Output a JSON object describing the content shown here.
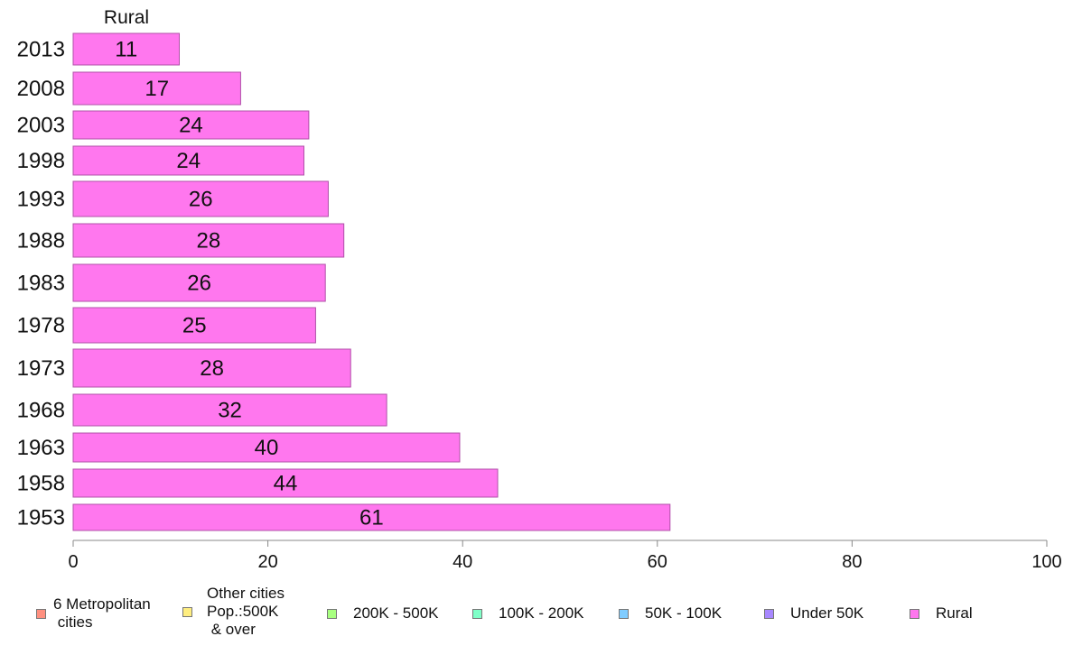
{
  "chart_data": {
    "type": "bar",
    "orientation": "horizontal",
    "panel_title": "Rural",
    "categories": [
      "2013",
      "2008",
      "2003",
      "1998",
      "1993",
      "1988",
      "1983",
      "1978",
      "1973",
      "1968",
      "1963",
      "1958",
      "1953"
    ],
    "values": [
      10.9,
      17.2,
      24.2,
      23.7,
      26.2,
      27.8,
      25.9,
      24.9,
      28.5,
      32.2,
      39.7,
      43.6,
      61.3
    ],
    "value_labels": [
      "11",
      "17",
      "24",
      "24",
      "26",
      "28",
      "26",
      "25",
      "28",
      "32",
      "40",
      "44",
      "61"
    ],
    "xlim": [
      0,
      100
    ],
    "xticks": [
      "0",
      "20",
      "40",
      "60",
      "80",
      "100"
    ],
    "bar_color": "#ff77ee",
    "bar_border": "#b050a8",
    "grid": false,
    "legend_position": "bottom",
    "legend": [
      {
        "label": "6 Metropolitan\n cities",
        "color": "#ff9080"
      },
      {
        "label": "Other cities\nPop.:500K\n & over",
        "color": "#ffee80"
      },
      {
        "label": "200K - 500K",
        "color": "#a8ff80"
      },
      {
        "label": "100K - 200K",
        "color": "#80ffc8"
      },
      {
        "label": "50K - 100K",
        "color": "#80ccff"
      },
      {
        "label": "Under 50K",
        "color": "#a888ff"
      },
      {
        "label": "Rural",
        "color": "#ff77ee"
      }
    ]
  }
}
